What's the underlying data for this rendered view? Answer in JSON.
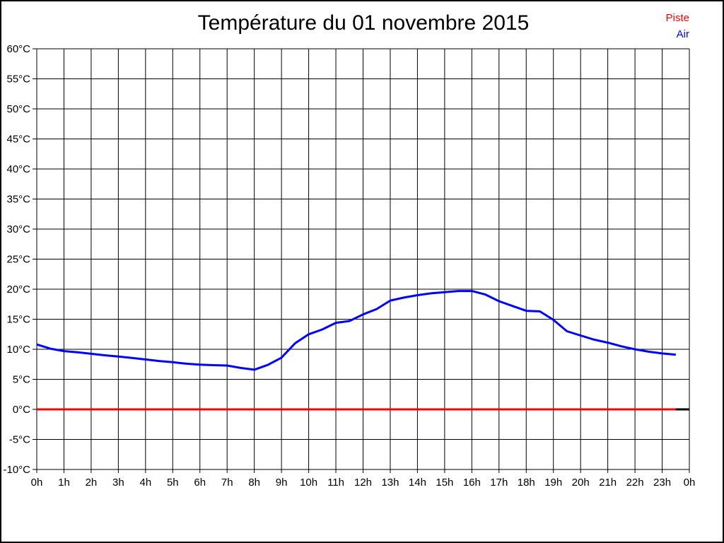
{
  "window": {
    "background": "#ffffff",
    "border_color": "#000000"
  },
  "title": "Température du 01 novembre 2015",
  "legend": {
    "entries": [
      {
        "label": "Piste",
        "color": "#ff0000"
      },
      {
        "label": "Air",
        "color": "#0000ff"
      }
    ]
  },
  "chart_data": {
    "type": "line",
    "title": "Température du 01 novembre 2015",
    "xlabel": "",
    "ylabel": "",
    "xlim": [
      0,
      24
    ],
    "ylim": [
      -10,
      60
    ],
    "grid": true,
    "grid_color": "#000000",
    "legend_position": "top-right",
    "x_tick_labels": [
      "0h",
      "1h",
      "2h",
      "3h",
      "4h",
      "5h",
      "6h",
      "7h",
      "8h",
      "9h",
      "10h",
      "11h",
      "12h",
      "13h",
      "14h",
      "15h",
      "16h",
      "17h",
      "18h",
      "19h",
      "20h",
      "21h",
      "22h",
      "23h",
      "0h"
    ],
    "x_tick_values": [
      0,
      1,
      2,
      3,
      4,
      5,
      6,
      7,
      8,
      9,
      10,
      11,
      12,
      13,
      14,
      15,
      16,
      17,
      18,
      19,
      20,
      21,
      22,
      23,
      24
    ],
    "y_tick_labels": [
      "60°C",
      "55°C",
      "50°C",
      "45°C",
      "40°C",
      "35°C",
      "30°C",
      "25°C",
      "20°C",
      "15°C",
      "10°C",
      "5°C",
      "0°C",
      "-5°C",
      "-10°C"
    ],
    "y_tick_values": [
      60,
      55,
      50,
      45,
      40,
      35,
      30,
      25,
      20,
      15,
      10,
      5,
      0,
      -5,
      -10
    ],
    "zero_line": {
      "value": 0,
      "color": "#000000",
      "width": 3
    },
    "series": [
      {
        "name": "Piste",
        "color": "#ff0000",
        "width": 3,
        "x": [
          0,
          23.5
        ],
        "values": [
          0,
          0
        ]
      },
      {
        "name": "Air",
        "color": "#0000ff",
        "width": 3,
        "x": [
          0,
          0.5,
          1,
          1.5,
          2,
          2.5,
          3,
          3.5,
          4,
          4.5,
          5,
          5.5,
          6,
          6.5,
          7,
          7.5,
          8,
          8.5,
          9,
          9.5,
          10,
          10.5,
          11,
          11.5,
          12,
          12.5,
          13,
          13.5,
          14,
          14.5,
          15,
          15.5,
          16,
          16.5,
          17,
          17.5,
          18,
          18.5,
          19,
          19.5,
          20,
          20.5,
          21,
          21.5,
          22,
          22.5,
          23,
          23.5
        ],
        "values": [
          10.8,
          10.1,
          9.7,
          9.5,
          9.25,
          9.0,
          8.8,
          8.55,
          8.3,
          8.05,
          7.85,
          7.6,
          7.45,
          7.35,
          7.3,
          6.9,
          6.6,
          7.4,
          8.6,
          11.0,
          12.5,
          13.3,
          14.4,
          14.7,
          15.8,
          16.7,
          18.1,
          18.6,
          19.0,
          19.3,
          19.5,
          19.7,
          19.7,
          19.1,
          18.0,
          17.2,
          16.4,
          16.3,
          14.9,
          13.0,
          12.3,
          11.6,
          11.1,
          10.5,
          10.0,
          9.6,
          9.3,
          9.1
        ]
      }
    ]
  }
}
